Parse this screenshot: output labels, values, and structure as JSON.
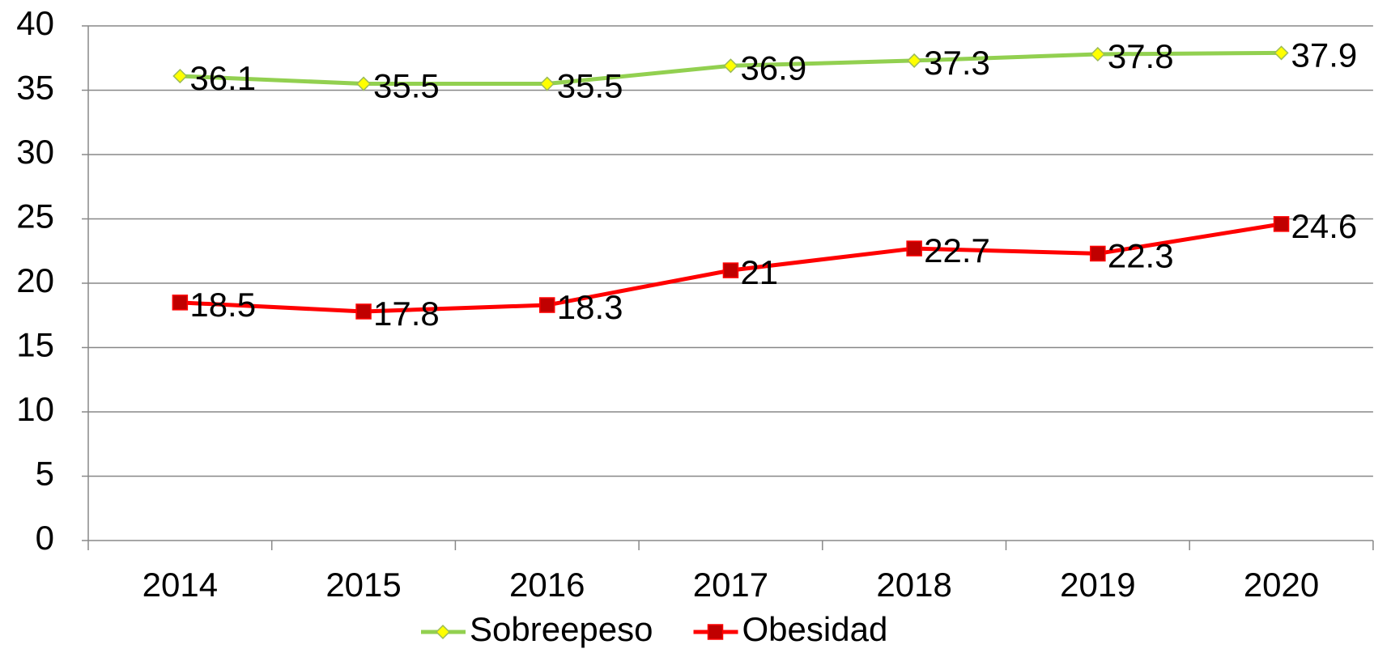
{
  "chart_data": {
    "type": "line",
    "categories": [
      "2014",
      "2015",
      "2016",
      "2017",
      "2018",
      "2019",
      "2020"
    ],
    "series": [
      {
        "name": "Sobreepeso",
        "color": "#92d050",
        "marker": "diamond",
        "marker_color": "#ffff00",
        "values": [
          36.1,
          35.5,
          35.5,
          36.9,
          37.3,
          37.8,
          37.9
        ]
      },
      {
        "name": "Obesidad",
        "color": "#ff0000",
        "marker": "square",
        "marker_color": "#c00000",
        "values": [
          18.5,
          17.8,
          18.3,
          21,
          22.7,
          22.3,
          24.6
        ]
      }
    ],
    "ylim": [
      0,
      40
    ],
    "yticks": [
      0,
      5,
      10,
      15,
      20,
      25,
      30,
      35,
      40
    ],
    "grid": true,
    "legend": "bottom"
  }
}
